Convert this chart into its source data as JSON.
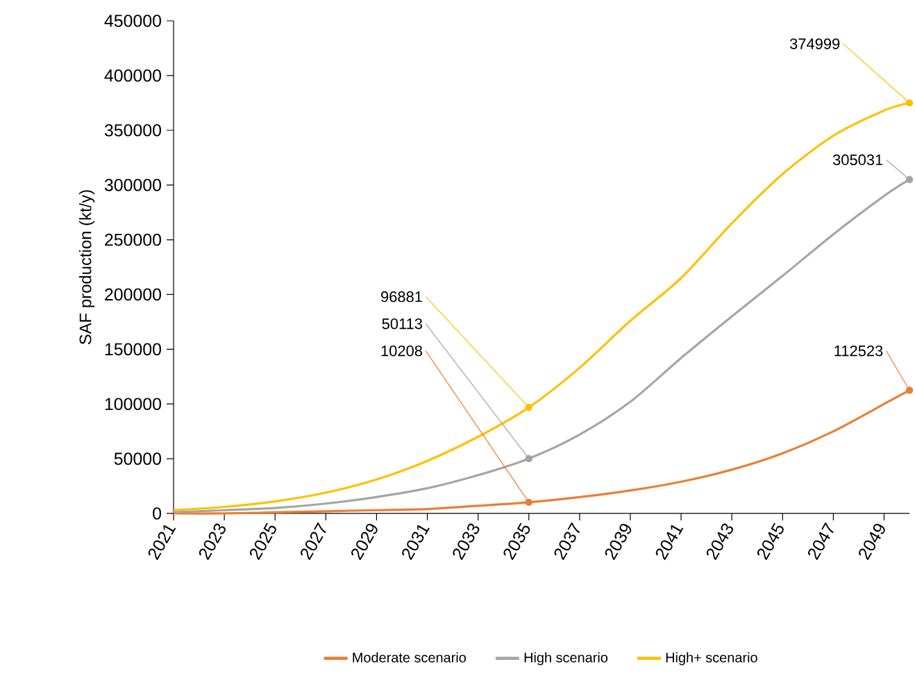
{
  "chart_data": {
    "type": "line",
    "ylabel": "SAF production (kt/y)",
    "x": [
      2021,
      2023,
      2025,
      2027,
      2029,
      2031,
      2033,
      2035,
      2037,
      2039,
      2041,
      2043,
      2045,
      2047,
      2049,
      2050
    ],
    "series": [
      {
        "name": "Moderate scenario",
        "color": "#ed7d31",
        "values": [
          0,
          0,
          1000,
          2000,
          3000,
          4000,
          7000,
          10208,
          15000,
          21000,
          29000,
          40000,
          55000,
          75000,
          100000,
          112523
        ],
        "value_labels": [
          null,
          null,
          null,
          null,
          null,
          null,
          null,
          "10208",
          null,
          null,
          null,
          null,
          null,
          null,
          null,
          "112523"
        ]
      },
      {
        "name": "High scenario",
        "color": "#a5a5a5",
        "values": [
          1000,
          3000,
          5000,
          9000,
          15000,
          23000,
          35000,
          50113,
          72000,
          102000,
          142000,
          180000,
          217000,
          255000,
          290000,
          305031
        ],
        "value_labels": [
          null,
          null,
          null,
          null,
          null,
          null,
          null,
          "50113",
          null,
          null,
          null,
          null,
          null,
          null,
          null,
          "305031"
        ]
      },
      {
        "name": "High+ scenario",
        "color": "#ffc000",
        "values": [
          3000,
          6000,
          11000,
          19000,
          31000,
          48000,
          70000,
          96881,
          133000,
          176000,
          215000,
          265000,
          310000,
          345000,
          368000,
          374999
        ],
        "value_labels": [
          null,
          null,
          null,
          null,
          null,
          null,
          null,
          "96881",
          null,
          null,
          null,
          null,
          null,
          null,
          null,
          "374999"
        ]
      }
    ],
    "xlim": [
      2021,
      2050
    ],
    "xticks": [
      2021,
      2023,
      2025,
      2027,
      2029,
      2031,
      2033,
      2035,
      2037,
      2039,
      2041,
      2043,
      2045,
      2047,
      2049
    ],
    "ylim": [
      0,
      450000
    ],
    "yticks": [
      0,
      50000,
      100000,
      150000,
      200000,
      250000,
      300000,
      350000,
      400000,
      450000
    ],
    "legend": "bottom",
    "grid": false,
    "marker": "none",
    "line_style": "solid"
  }
}
